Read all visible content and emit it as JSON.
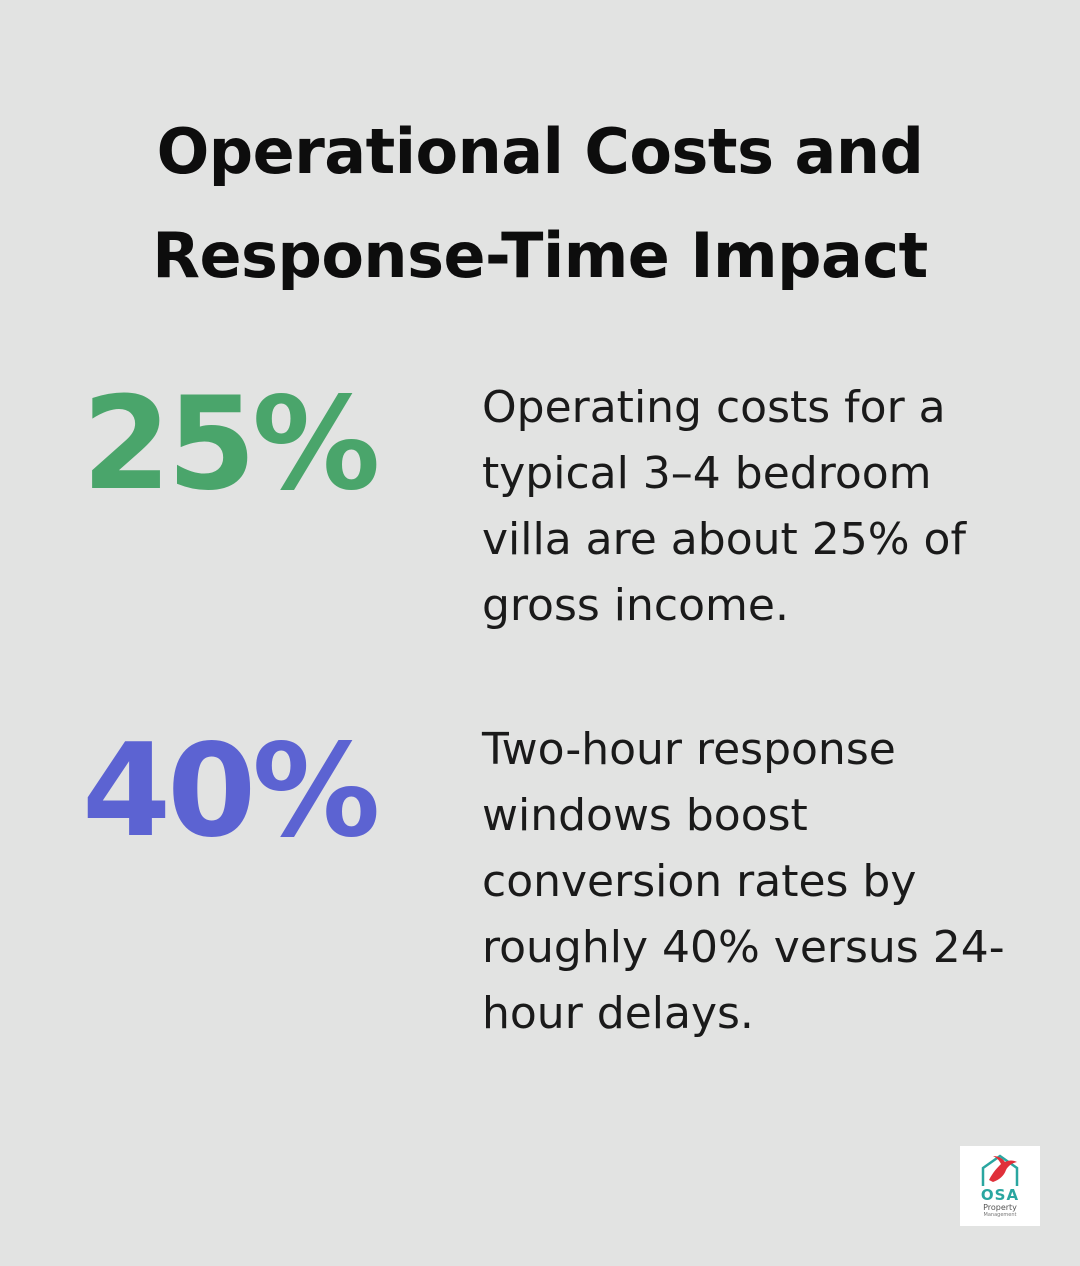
{
  "header": {
    "title_line1": "Operational Costs and",
    "title_line2": "Response-Time Impact"
  },
  "stats": [
    {
      "value": "25%",
      "color": "#4aa56b",
      "lines": [
        "Operating costs for a",
        "typical 3–4 bedroom",
        "villa are about 25% of",
        "gross income."
      ]
    },
    {
      "value": "40%",
      "color": "#5c63d2",
      "lines": [
        "Two-hour response",
        "windows boost",
        "conversion rates by",
        "roughly 40% versus 24-",
        "hour delays."
      ]
    }
  ],
  "logo": {
    "name": "OSA",
    "line2": "Property",
    "line3": "Management",
    "icon": "bird-house-icon",
    "color_bird": "#e0303a",
    "color_text": "#2aa6a0"
  }
}
